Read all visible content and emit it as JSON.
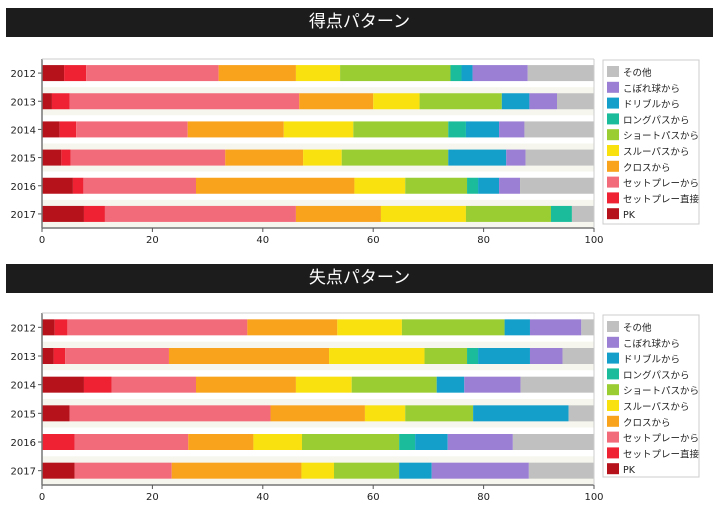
{
  "chart_data": [
    {
      "type": "bar",
      "orientation": "horizontal",
      "stacked": true,
      "title": "得点パターン",
      "categories": [
        "2012",
        "2013",
        "2014",
        "2015",
        "2016",
        "2017"
      ],
      "xlim": [
        0,
        100
      ],
      "xticks": [
        0,
        20,
        40,
        60,
        80,
        100
      ],
      "grid": false,
      "legend_position": "right",
      "series": [
        {
          "name": "PK",
          "color": "#b5121b",
          "values": [
            4,
            1.8,
            3.2,
            3.5,
            5.6,
            7.6
          ]
        },
        {
          "name": "セットプレー直接",
          "color": "#ee2233",
          "values": [
            4,
            3.2,
            3,
            1.7,
            1.9,
            3.8
          ]
        },
        {
          "name": "セットプレーから",
          "color": "#f26b7a",
          "values": [
            24,
            41.6,
            20.2,
            28,
            20.4,
            34.6
          ]
        },
        {
          "name": "クロスから",
          "color": "#f9a21b",
          "values": [
            14,
            13.4,
            17.4,
            14.1,
            28.7,
            15.4
          ]
        },
        {
          "name": "スルーパスから",
          "color": "#f9e10f",
          "values": [
            8,
            8.4,
            12.6,
            7,
            9.2,
            15.4
          ]
        },
        {
          "name": "ショートパスから",
          "color": "#9acd32",
          "values": [
            20,
            14.9,
            17.2,
            19.3,
            11.2,
            15.4
          ]
        },
        {
          "name": "ロングパスから",
          "color": "#1abc9c",
          "values": [
            2,
            0,
            3.2,
            0,
            2,
            3.8
          ]
        },
        {
          "name": "ドリブルから",
          "color": "#139fca",
          "values": [
            2,
            5,
            6,
            10.5,
            3.8,
            0
          ]
        },
        {
          "name": "こぼれ球から",
          "color": "#9b7fd4",
          "values": [
            10,
            5,
            4.6,
            3.5,
            3.8,
            0
          ]
        },
        {
          "name": "その他",
          "color": "#c0c0c0",
          "values": [
            12,
            6.7,
            12.6,
            12.4,
            13.4,
            4
          ]
        }
      ]
    },
    {
      "type": "bar",
      "orientation": "horizontal",
      "stacked": true,
      "title": "失点パターン",
      "categories": [
        "2012",
        "2013",
        "2014",
        "2015",
        "2016",
        "2017"
      ],
      "xlim": [
        0,
        100
      ],
      "xticks": [
        0,
        20,
        40,
        60,
        80,
        100
      ],
      "grid": false,
      "legend_position": "right",
      "series": [
        {
          "name": "PK",
          "color": "#b5121b",
          "values": [
            2.3,
            2.1,
            7.6,
            5,
            0,
            5.9
          ]
        },
        {
          "name": "セットプレー直接",
          "color": "#ee2233",
          "values": [
            2.3,
            2.1,
            5,
            0,
            5.9,
            0
          ]
        },
        {
          "name": "セットプレーから",
          "color": "#f26b7a",
          "values": [
            32.6,
            18.8,
            15.3,
            36.4,
            20.6,
            17.6
          ]
        },
        {
          "name": "クロスから",
          "color": "#f9a21b",
          "values": [
            16.3,
            29,
            18.1,
            17.1,
            11.8,
            23.5
          ]
        },
        {
          "name": "スルーパスから",
          "color": "#f9e10f",
          "values": [
            11.7,
            17.3,
            10.1,
            7.3,
            8.8,
            5.9
          ]
        },
        {
          "name": "ショートパスから",
          "color": "#9acd32",
          "values": [
            18.6,
            7.7,
            15.4,
            12.3,
            17.6,
            11.8
          ]
        },
        {
          "name": "ロングパスから",
          "color": "#1abc9c",
          "values": [
            0,
            2,
            0,
            0,
            2.9,
            0
          ]
        },
        {
          "name": "ドリブルから",
          "color": "#139fca",
          "values": [
            4.6,
            9.4,
            5,
            17.3,
            5.9,
            5.9
          ]
        },
        {
          "name": "こぼれ球から",
          "color": "#9b7fd4",
          "values": [
            9.3,
            5.9,
            10.2,
            0,
            11.8,
            17.6
          ]
        },
        {
          "name": "その他",
          "color": "#c0c0c0",
          "values": [
            2.3,
            5.7,
            13.3,
            4.6,
            14.7,
            11.7
          ]
        }
      ]
    }
  ]
}
